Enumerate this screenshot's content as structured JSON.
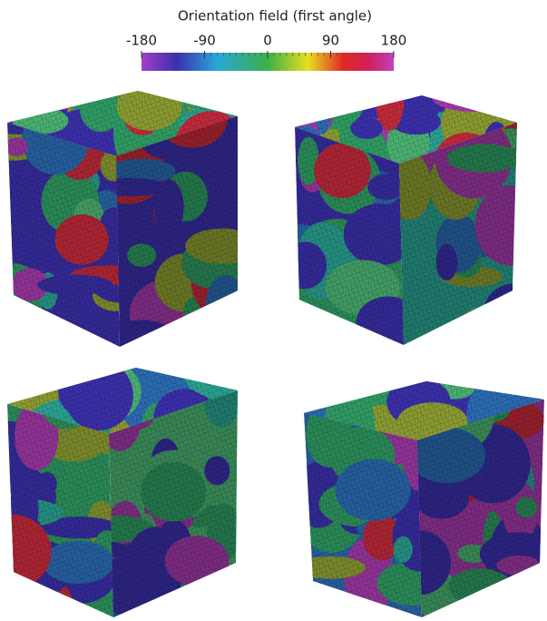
{
  "colorbar": {
    "title": "Orientation field (first angle)",
    "lim": [
      -180,
      180
    ],
    "ticks": [
      -180,
      -90,
      0,
      90,
      180
    ]
  }
}
